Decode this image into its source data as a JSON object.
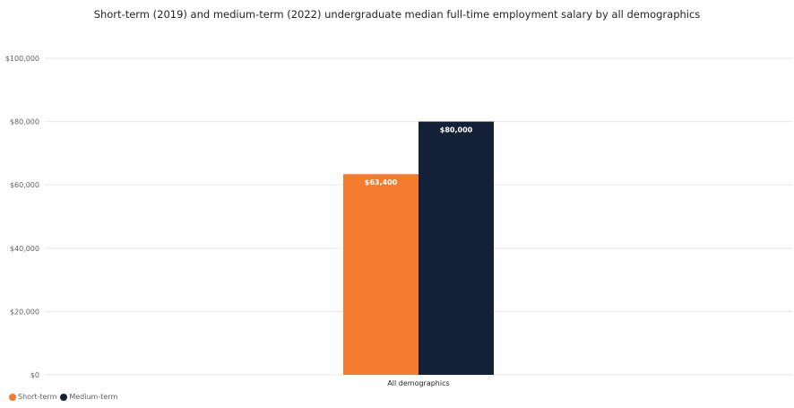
{
  "chart_data": {
    "type": "bar",
    "title": "Short-term (2019) and medium-term (2022) undergraduate median full-time employment salary by all demographics",
    "xlabel": "",
    "ylabel": "",
    "categories": [
      "All demographics"
    ],
    "series": [
      {
        "name": "Short-term",
        "values": [
          63400
        ],
        "labels": [
          "$63,400"
        ],
        "color": "#f47b2f"
      },
      {
        "name": "Medium-term",
        "values": [
          80000
        ],
        "labels": [
          "$80,000"
        ],
        "color": "#142038"
      }
    ],
    "ylim": [
      0,
      100000
    ],
    "yticks": [
      0,
      20000,
      40000,
      60000,
      80000,
      100000
    ],
    "ytick_labels": [
      "$0",
      "$20,000",
      "$40,000",
      "$60,000",
      "$80,000",
      "$100,000"
    ],
    "grid": true,
    "legend_position": "bottom-left"
  }
}
